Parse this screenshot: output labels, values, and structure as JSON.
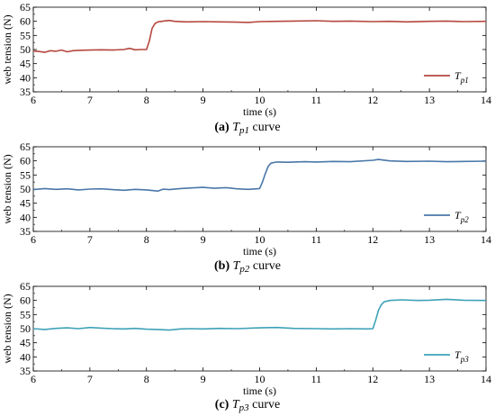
{
  "figure_panels": [
    {
      "caption_tag": "(a)",
      "caption_symbol": "T",
      "caption_sub": "p1",
      "caption_rest": "curve",
      "legend_symbol": "T",
      "legend_sub": "p1",
      "color": "#b5473f"
    },
    {
      "caption_tag": "(b)",
      "caption_symbol": "T",
      "caption_sub": "p2",
      "caption_rest": "curve",
      "legend_symbol": "T",
      "legend_sub": "p2",
      "color": "#4a77a8"
    },
    {
      "caption_tag": "(c)",
      "caption_symbol": "T",
      "caption_sub": "p3",
      "caption_rest": "curve",
      "legend_symbol": "T",
      "legend_sub": "p3",
      "color": "#3ea2b8"
    }
  ],
  "chart_data": [
    {
      "type": "line",
      "xlabel": "time (s)",
      "ylabel": "web tension (N)",
      "xlim": [
        6,
        14
      ],
      "ylim": [
        35,
        65
      ],
      "xticks": [
        6,
        7,
        8,
        9,
        10,
        11,
        12,
        13,
        14
      ],
      "yticks": [
        35,
        40,
        45,
        50,
        55,
        60,
        65
      ],
      "grid": false,
      "legend_position": "bottom-right",
      "series": [
        {
          "name": "Tp1",
          "x": [
            6.0,
            6.1,
            6.2,
            6.3,
            6.4,
            6.5,
            6.6,
            6.7,
            6.8,
            7.0,
            7.2,
            7.4,
            7.6,
            7.7,
            7.8,
            7.9,
            8.0,
            8.05,
            8.1,
            8.15,
            8.2,
            8.3,
            8.4,
            8.5,
            8.7,
            9.0,
            9.3,
            9.6,
            9.8,
            10.0,
            10.3,
            10.6,
            11.0,
            11.3,
            11.6,
            12.0,
            12.3,
            12.6,
            13.0,
            13.3,
            13.6,
            14.0
          ],
          "values": [
            49.5,
            49.3,
            49.0,
            49.6,
            49.4,
            49.8,
            49.2,
            49.6,
            49.7,
            49.8,
            49.9,
            49.8,
            50.0,
            50.4,
            49.9,
            50.0,
            50.0,
            53.0,
            57.5,
            59.2,
            59.8,
            60.1,
            60.3,
            60.0,
            59.8,
            59.9,
            59.8,
            59.7,
            59.6,
            59.9,
            60.0,
            60.1,
            60.2,
            60.0,
            60.1,
            59.9,
            60.0,
            59.8,
            60.0,
            60.1,
            59.9,
            60.0
          ]
        }
      ]
    },
    {
      "type": "line",
      "xlabel": "time (s)",
      "ylabel": "web tension (N)",
      "xlim": [
        6,
        14
      ],
      "ylim": [
        35,
        65
      ],
      "xticks": [
        6,
        7,
        8,
        9,
        10,
        11,
        12,
        13,
        14
      ],
      "yticks": [
        35,
        40,
        45,
        50,
        55,
        60,
        65
      ],
      "grid": false,
      "legend_position": "bottom-right",
      "series": [
        {
          "name": "Tp2",
          "x": [
            6.0,
            6.2,
            6.4,
            6.6,
            6.8,
            7.0,
            7.2,
            7.4,
            7.6,
            7.8,
            8.0,
            8.2,
            8.3,
            8.4,
            8.6,
            8.8,
            9.0,
            9.2,
            9.4,
            9.6,
            9.8,
            10.0,
            10.05,
            10.1,
            10.15,
            10.2,
            10.3,
            10.5,
            10.8,
            11.0,
            11.3,
            11.6,
            12.0,
            12.1,
            12.3,
            12.6,
            13.0,
            13.3,
            13.6,
            14.0
          ],
          "values": [
            49.8,
            50.2,
            49.9,
            50.1,
            49.7,
            50.0,
            50.1,
            49.8,
            49.6,
            49.9,
            49.7,
            49.3,
            50.0,
            49.8,
            50.2,
            50.4,
            50.6,
            50.3,
            50.5,
            50.1,
            49.9,
            50.2,
            52.5,
            55.5,
            58.0,
            59.2,
            59.6,
            59.5,
            59.7,
            59.6,
            59.8,
            59.7,
            60.2,
            60.5,
            60.0,
            59.8,
            59.9,
            59.7,
            59.8,
            59.9
          ]
        }
      ]
    },
    {
      "type": "line",
      "xlabel": "time (s)",
      "ylabel": "web tension (N)",
      "xlim": [
        6,
        14
      ],
      "ylim": [
        35,
        65
      ],
      "xticks": [
        6,
        7,
        8,
        9,
        10,
        11,
        12,
        13,
        14
      ],
      "yticks": [
        35,
        40,
        45,
        50,
        55,
        60,
        65
      ],
      "grid": false,
      "legend_position": "bottom-right",
      "series": [
        {
          "name": "Tp3",
          "x": [
            6.0,
            6.2,
            6.4,
            6.6,
            6.8,
            7.0,
            7.2,
            7.4,
            7.6,
            7.8,
            8.0,
            8.2,
            8.4,
            8.6,
            8.8,
            9.0,
            9.3,
            9.6,
            10.0,
            10.3,
            10.6,
            11.0,
            11.3,
            11.6,
            11.9,
            12.0,
            12.05,
            12.1,
            12.15,
            12.2,
            12.3,
            12.5,
            12.8,
            13.0,
            13.3,
            13.6,
            14.0
          ],
          "values": [
            50.0,
            49.7,
            50.1,
            50.3,
            50.0,
            50.4,
            50.2,
            50.0,
            49.9,
            50.1,
            49.8,
            49.7,
            49.5,
            49.9,
            50.0,
            49.9,
            50.1,
            50.0,
            50.3,
            50.4,
            50.1,
            50.0,
            49.9,
            50.0,
            49.9,
            50.0,
            53.0,
            56.5,
            58.5,
            59.5,
            60.0,
            60.2,
            60.0,
            60.1,
            60.4,
            60.1,
            60.0
          ]
        }
      ]
    }
  ]
}
